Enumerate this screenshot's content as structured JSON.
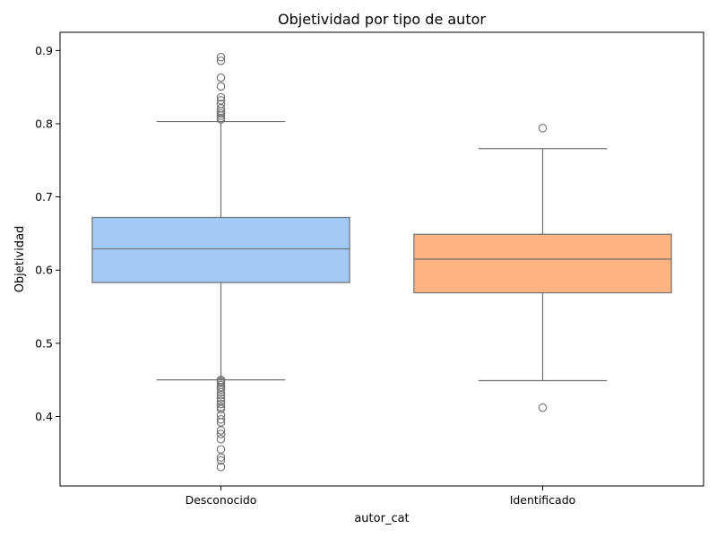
{
  "chart_data": {
    "type": "boxplot",
    "title": "Objetividad por tipo de autor",
    "xlabel": "autor_cat",
    "ylabel": "Objetividad",
    "ylim": [
      0.305,
      0.925
    ],
    "yticks": [
      0.4,
      0.5,
      0.6,
      0.7,
      0.8,
      0.9
    ],
    "ytick_labels": [
      "0.4",
      "0.5",
      "0.6",
      "0.7",
      "0.8",
      "0.9"
    ],
    "grid": false,
    "categories": [
      "Desconocido",
      "Identificado"
    ],
    "colors": {
      "Desconocido": "#a1c9f4",
      "Identificado": "#ffb482",
      "edge": "#707070"
    },
    "boxes": [
      {
        "category": "Desconocido",
        "whisker_low": 0.45,
        "q1": 0.583,
        "median": 0.629,
        "q3": 0.672,
        "whisker_high": 0.803,
        "outliers": [
          0.891,
          0.886,
          0.863,
          0.851,
          0.836,
          0.832,
          0.827,
          0.821,
          0.817,
          0.814,
          0.811,
          0.808,
          0.806,
          0.45,
          0.448,
          0.446,
          0.443,
          0.44,
          0.437,
          0.433,
          0.429,
          0.425,
          0.421,
          0.417,
          0.413,
          0.41,
          0.402,
          0.396,
          0.392,
          0.381,
          0.376,
          0.369,
          0.355,
          0.344,
          0.34,
          0.331
        ]
      },
      {
        "category": "Identificado",
        "whisker_low": 0.449,
        "q1": 0.569,
        "median": 0.615,
        "q3": 0.649,
        "whisker_high": 0.766,
        "outliers": [
          0.794,
          0.412
        ]
      }
    ]
  }
}
